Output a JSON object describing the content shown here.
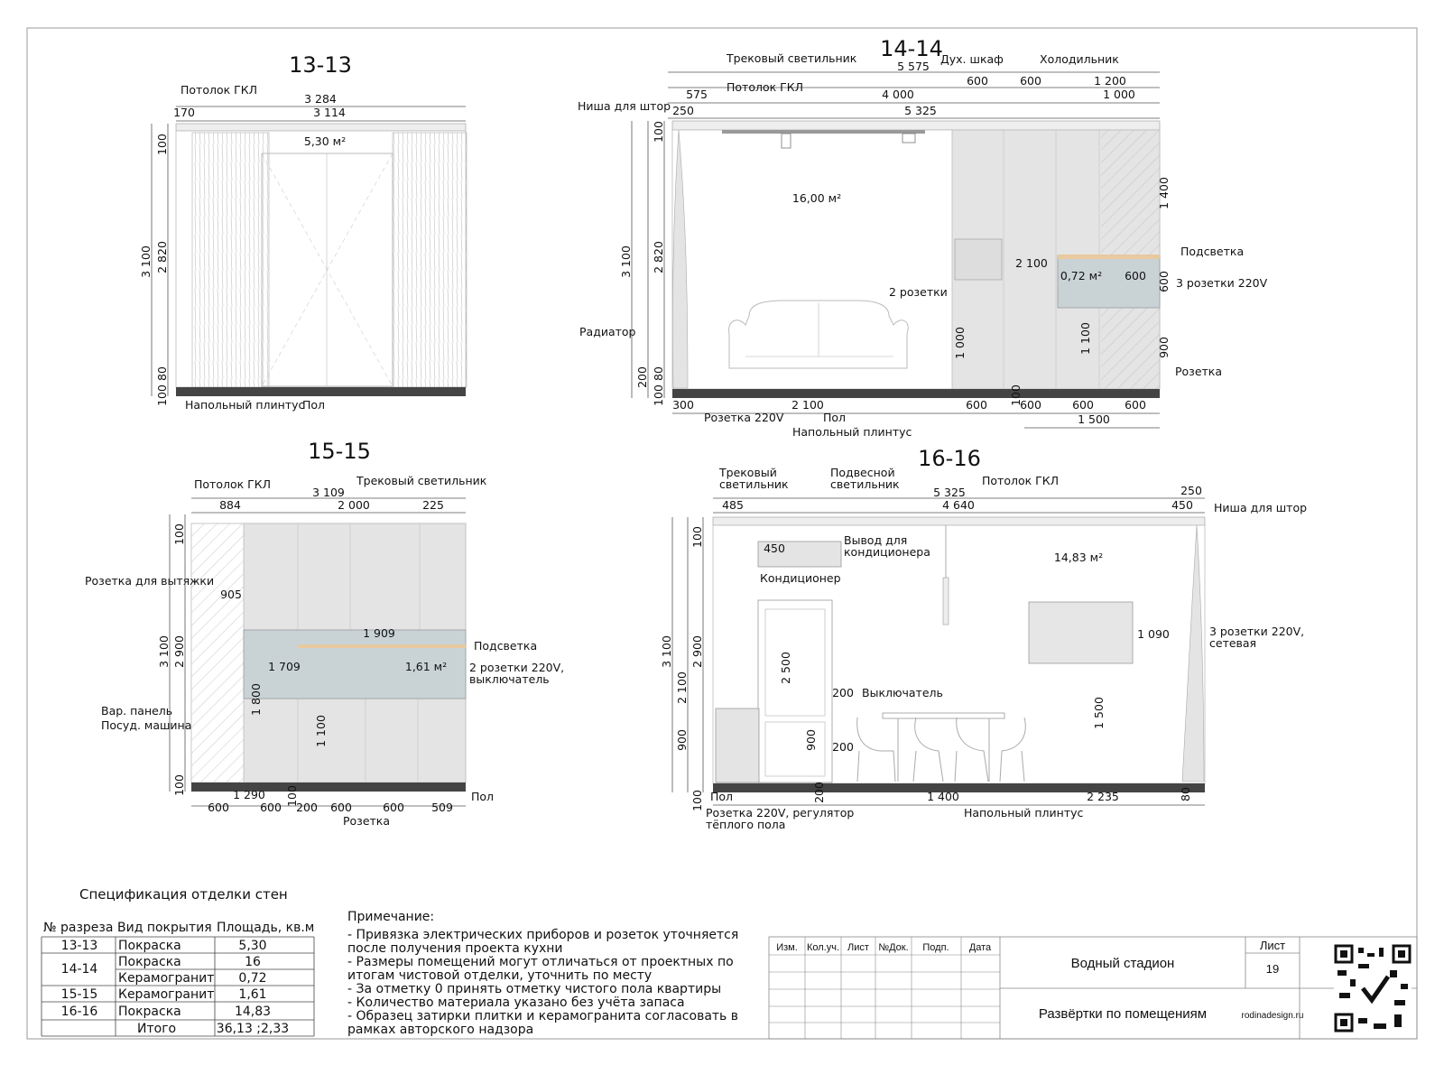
{
  "views": {
    "v1313": {
      "title": "13-13",
      "area": "5,30 м²",
      "dims": {
        "w_total": "3 284",
        "w_curtain": "170",
        "w_inner": "3 114",
        "h_total": "3 100",
        "h_wall": "2 820",
        "h_top": "100",
        "h_skirt": "80",
        "h_floor": "100"
      },
      "labels": {
        "ceiling": "Потолок ГКЛ",
        "skirting": "Напольный плинтус",
        "floor": "Пол"
      }
    },
    "v1414": {
      "title": "14-14",
      "area_wall": "16,00 м²",
      "area_tile": "0,72 м²",
      "dims": {
        "w_total": "5 575",
        "w_left": "575",
        "w_mid": "4 000",
        "w_oven": "600",
        "w_fridge": "600",
        "w_right": "1 200",
        "w_right_inner": "1 000",
        "w_niche": "250",
        "w_main": "5 325",
        "h_top": "100",
        "h_total": "3 100",
        "h_wall": "2 820",
        "h_skirt1": "200",
        "h_skirt2": "80",
        "h_floor": "100",
        "h_tile": "2 100",
        "w_tile": "600",
        "h_tile_v": "600",
        "h_1400": "1 400",
        "h_1000": "1 000",
        "h_1100": "1 100",
        "h_900": "900",
        "h_100b": "100",
        "b_300": "300",
        "b_2100": "2 100",
        "b_600a": "600",
        "b_600b": "600",
        "b_600c": "600",
        "b_600d": "600",
        "b_1500": "1 500"
      },
      "labels": {
        "track": "Трековый светильник",
        "ceiling": "Потолок ГКЛ",
        "oven": "Дух. шкаф",
        "fridge": "Холодильник",
        "niche": "Ниша для штор",
        "backlight": "Подсветка",
        "sockets3": "3 розетки 220V",
        "sockets2": "2 розетки",
        "radiator": "Радиатор",
        "socket": "Розетка",
        "socket220": "Розетка 220V",
        "floor": "Пол",
        "skirting": "Напольный плинтус"
      }
    },
    "v1515": {
      "title": "15-15",
      "area": "1,61 м²",
      "dims": {
        "w_total": "3 109",
        "w_left": "884",
        "w_mid": "2 000",
        "w_right": "225",
        "h_top": "100",
        "h_total": "3 100",
        "h_wall": "2 900",
        "h_905": "905",
        "w_1909": "1 909",
        "w_1709": "1 709",
        "h_1800": "1 800",
        "h_1100": "1 100",
        "h_floor": "100",
        "b_1290": "1 290",
        "b_100": "100",
        "b_600a": "600",
        "b_600b": "600",
        "b_200": "200",
        "b_600c": "600",
        "b_600d": "600",
        "b_509": "509"
      },
      "labels": {
        "ceiling": "Потолок ГКЛ",
        "track": "Трековый светильник",
        "hood": "Розетка для вытяжки",
        "backlight": "Подсветка",
        "sockets2": "2 розетки 220V,",
        "switch": "выключатель",
        "hob": "Вар. панель",
        "dishwasher": "Посуд. машина",
        "floor": "Пол",
        "socket": "Розетка"
      }
    },
    "v1616": {
      "title": "16-16",
      "area": "14,83 м²",
      "dims": {
        "w_total": "5 325",
        "w_left": "485",
        "w_mid": "4 640",
        "w_right": "450",
        "w_niche": "250",
        "h_top": "100",
        "h_total": "3 100",
        "h_wall": "2 900",
        "h_2100": "2 100",
        "h_900": "900",
        "h_floor": "100",
        "w_ac": "450",
        "h_door": "2 500",
        "h_switch": "200",
        "h_900b": "900",
        "h_200b": "200",
        "h_200c": "200",
        "w_1090": "1 090",
        "h_1500": "1 500",
        "h_80": "80",
        "b_1400": "1 400",
        "b_2235": "2 235"
      },
      "labels": {
        "track1": "Трековый",
        "track2": "светильник",
        "pend1": "Подвесной",
        "pend2": "светильник",
        "ceiling": "Потолок ГКЛ",
        "niche": "Ниша для штор",
        "ac": "Кондиционер",
        "acout1": "Вывод для",
        "acout2": "кондиционера",
        "sockets3a": "3 розетки 220V,",
        "sockets3b": "сетевая",
        "switch": "Выключатель",
        "floor": "Пол",
        "socket_reg1": "Розетка 220V, регулятор",
        "socket_reg2": "тёплого пола",
        "skirting": "Напольный плинтус"
      }
    }
  },
  "spec": {
    "title": "Спецификация отделки стен",
    "headers": [
      "№ разреза",
      "Вид покрытия",
      "Площадь, кв.м"
    ],
    "rows": [
      {
        "section": "13-13",
        "type": "Покраска",
        "area": "5,30"
      },
      {
        "section": "14-14",
        "type": "Покраска",
        "area": "16"
      },
      {
        "section": "",
        "type": "Керамогранит",
        "area": "0,72"
      },
      {
        "section": "15-15",
        "type": "Керамогранит",
        "area": "1,61"
      },
      {
        "section": "16-16",
        "type": "Покраска",
        "area": "14,83"
      },
      {
        "section": "",
        "type": "Итого",
        "area": "36,13 ;2,33"
      }
    ]
  },
  "notes": {
    "title": "Примечание:",
    "lines": [
      "- Привязка электрических приборов и розеток уточняется",
      "после получения проекта кухни",
      "- Размеры помещений могут отличаться от проектных по",
      "итогам чистовой отделки, уточнить по месту",
      "- За отметку 0 принять отметку чистого пола квартиры",
      "- Количество материала указано без учёта запаса",
      "- Образец затирки плитки и керамогранита согласовать в",
      "рамках авторского надзора"
    ]
  },
  "stamp": {
    "cols": [
      "Изм.",
      "Кол.уч.",
      "Лист",
      "№Док.",
      "Подп.",
      "Дата"
    ],
    "project": "Водный стадион",
    "sheet_title": "Развёртки по помещениям",
    "sheet_label": "Лист",
    "sheet_no": "19",
    "site": "rodinadesign.ru"
  }
}
